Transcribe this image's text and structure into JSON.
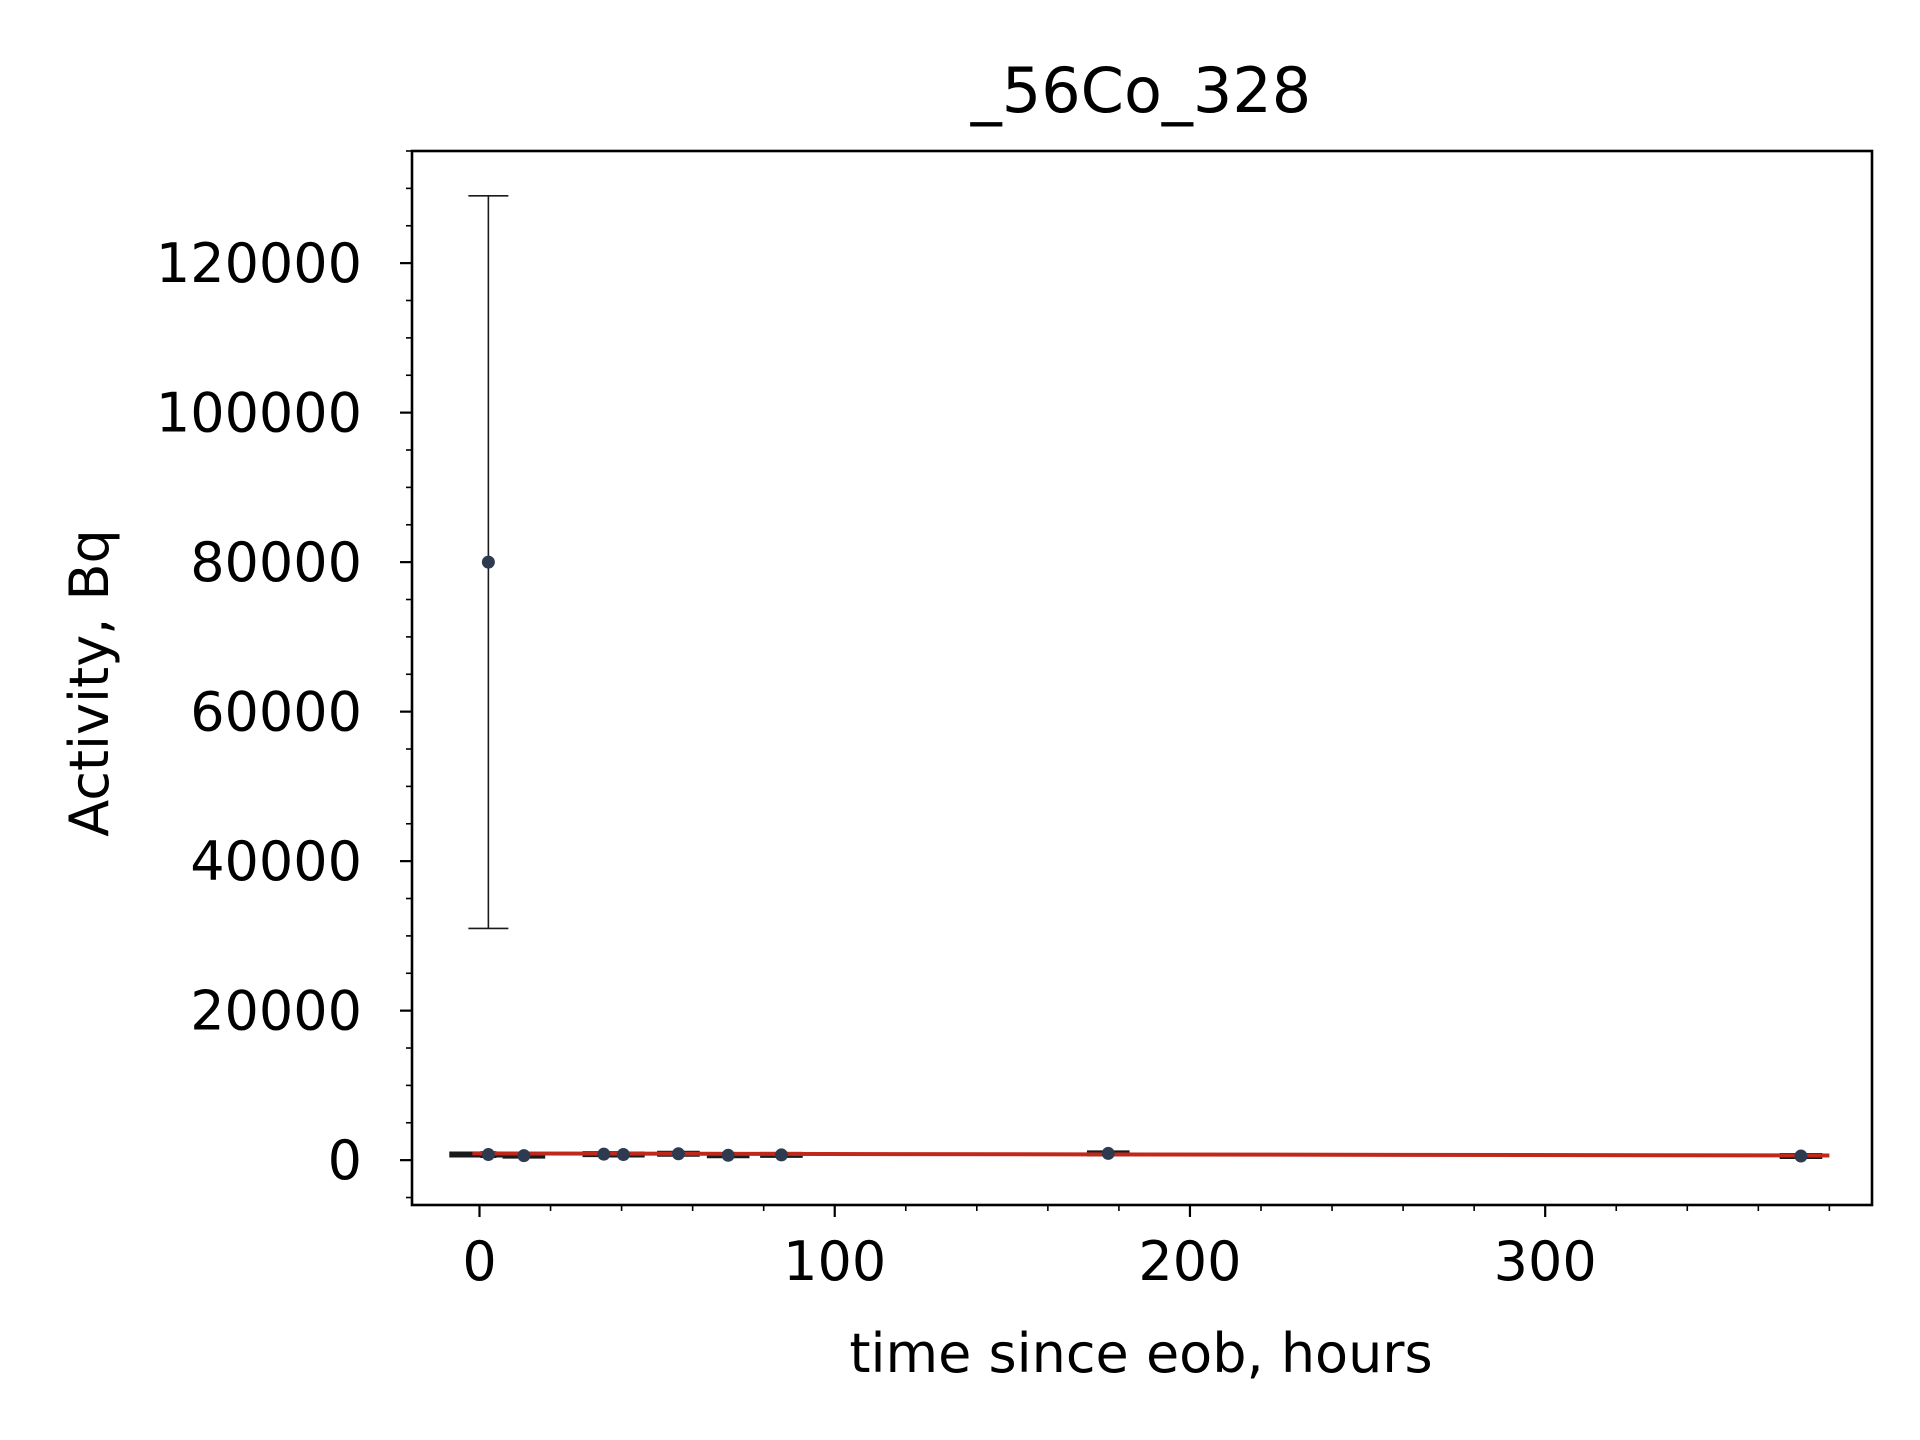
{
  "chart_data": {
    "type": "scatter",
    "title": "_56Co_328",
    "xlabel": "time since eob, hours",
    "ylabel": "Activity, Bq",
    "xlim": [
      -19,
      392
    ],
    "ylim": [
      -6000,
      135000
    ],
    "xticks": [
      0,
      100,
      200,
      300
    ],
    "yticks": [
      0,
      20000,
      40000,
      60000,
      80000,
      100000,
      120000
    ],
    "grid": false,
    "legend": false,
    "colors": {
      "points": "#2e3a4f",
      "errorbar": "#1a1a1a",
      "fit": "#c0281c",
      "axes": "#000000"
    },
    "points": [
      {
        "x": 2.5,
        "y": 80000,
        "yerr": 49000,
        "xerr": 0
      },
      {
        "x": 2.5,
        "y": 750,
        "yerr": 350,
        "xerr": 11
      },
      {
        "x": 12.5,
        "y": 600,
        "yerr": 200,
        "xerr": 6
      },
      {
        "x": 35,
        "y": 800,
        "yerr": 250,
        "xerr": 6
      },
      {
        "x": 40.5,
        "y": 750,
        "yerr": 250,
        "xerr": 6
      },
      {
        "x": 56,
        "y": 850,
        "yerr": 250,
        "xerr": 6
      },
      {
        "x": 70,
        "y": 650,
        "yerr": 200,
        "xerr": 6
      },
      {
        "x": 85,
        "y": 700,
        "yerr": 250,
        "xerr": 6
      },
      {
        "x": 177,
        "y": 900,
        "yerr": 250,
        "xerr": 6
      },
      {
        "x": 372,
        "y": 550,
        "yerr": 200,
        "xerr": 6
      }
    ],
    "fit": {
      "x": [
        -2,
        380
      ],
      "y": [
        900,
        620
      ]
    }
  }
}
